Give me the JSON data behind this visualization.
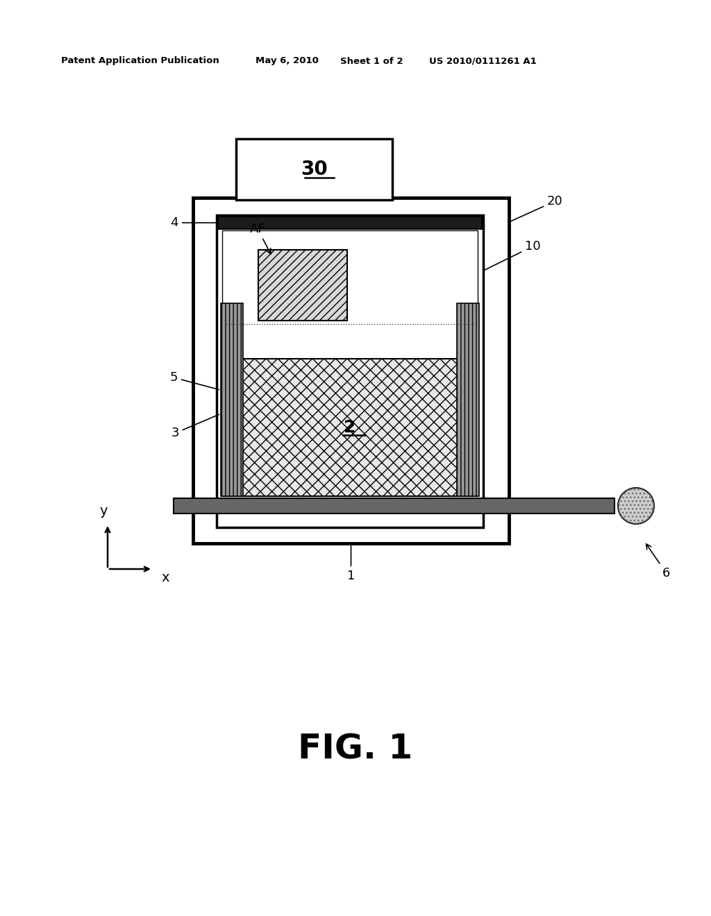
{
  "bg_color": "#ffffff",
  "header_text": "Patent Application Publication",
  "header_date": "May 6, 2010",
  "header_sheet": "Sheet 1 of 2",
  "header_patent": "US 2010/0111261 A1",
  "fig_label": "FIG. 1",
  "label_30": "30",
  "label_20": "20",
  "label_10": "10",
  "label_4": "4",
  "label_5": "5",
  "label_3": "3",
  "label_2": "2",
  "label_1": "1",
  "label_6": "6",
  "label_AF": "AF",
  "label_x": "x",
  "label_y": "y"
}
